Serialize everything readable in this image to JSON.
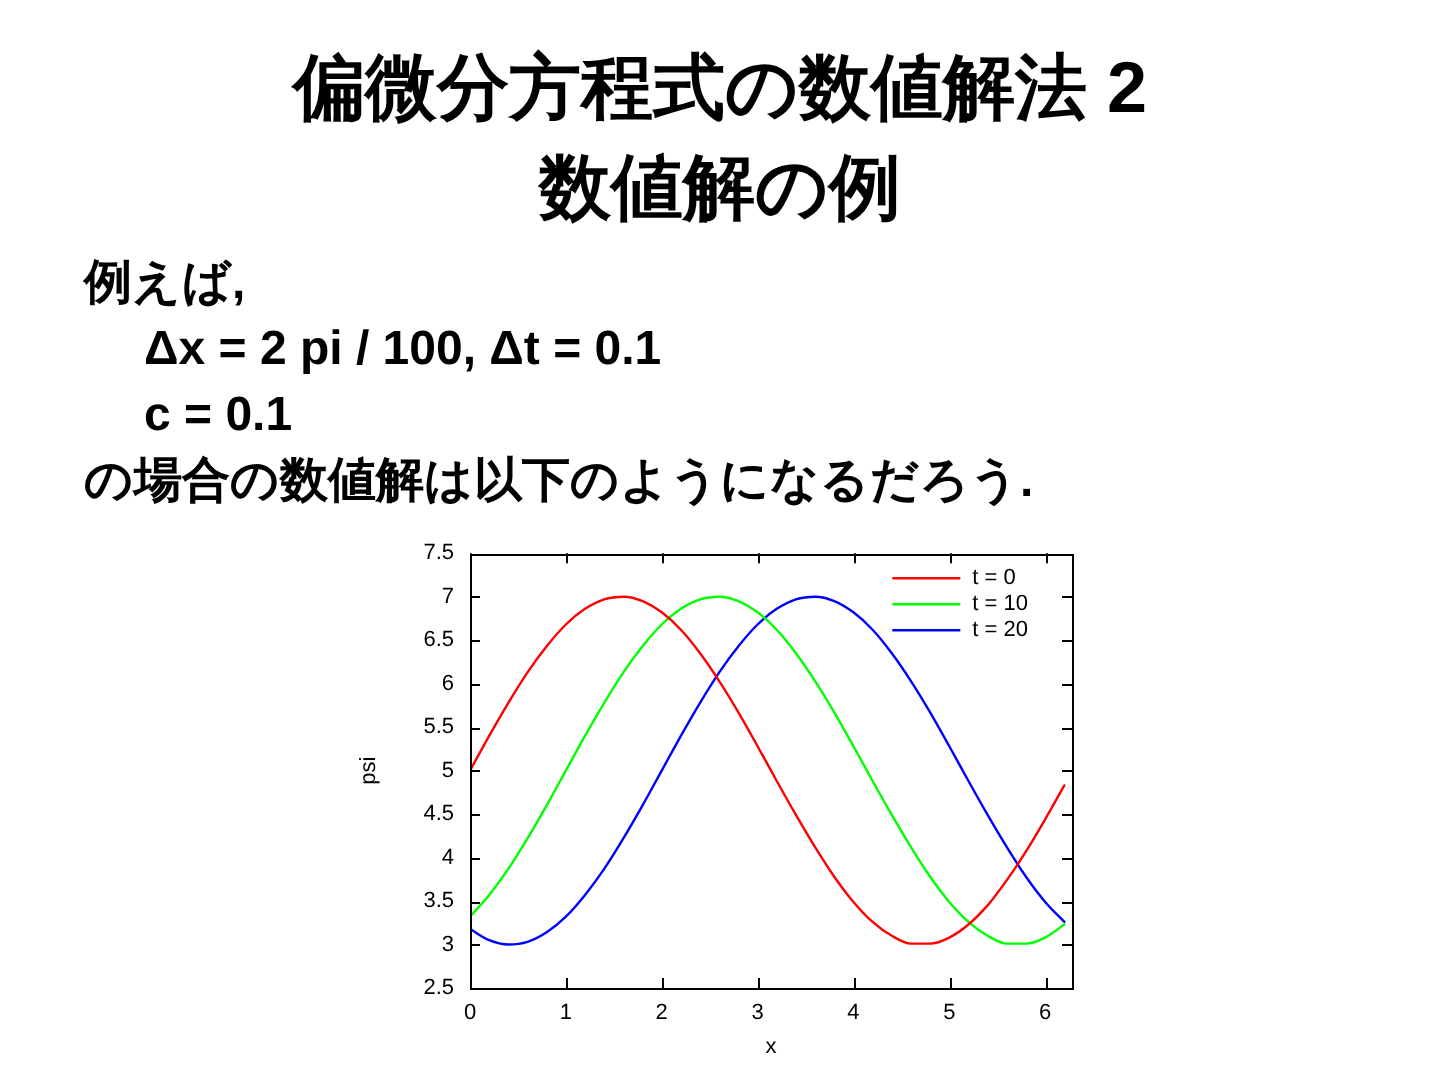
{
  "chart_data": {
    "type": "line",
    "title": "偏微分方程式の数値解法 2",
    "subtitle": "数値解の例",
    "annotations": [
      "例えば,",
      "Δx = 2 pi / 100, Δt = 0.1",
      "c = 0.1",
      "の場合の数値解は以下のようになるだろう."
    ],
    "xlabel": "x",
    "ylabel": "psi",
    "x": [
      0,
      0.2,
      0.4,
      0.6,
      0.8,
      1.0,
      1.2,
      1.4,
      1.6,
      1.8,
      2.0,
      2.2,
      2.4,
      2.6,
      2.8,
      3.0,
      3.2,
      3.4,
      3.6,
      3.8,
      4.0,
      4.2,
      4.4,
      4.6,
      4.8,
      5.0,
      5.2,
      5.4,
      5.6,
      5.8,
      6.0,
      6.2
    ],
    "series": [
      {
        "name": "t = 0",
        "color": "#ff0000",
        "values": [
          5.0,
          5.4,
          5.78,
          6.13,
          6.43,
          6.68,
          6.86,
          6.97,
          7.0,
          6.95,
          6.82,
          6.62,
          6.35,
          6.03,
          5.67,
          5.28,
          4.88,
          4.49,
          4.12,
          3.78,
          3.49,
          3.26,
          3.1,
          3.01,
          3.01,
          3.08,
          3.23,
          3.45,
          3.74,
          4.07,
          4.44,
          4.83
        ]
      },
      {
        "name": "t = 10",
        "color": "#00ff00",
        "values": [
          3.32,
          3.57,
          3.87,
          4.22,
          4.6,
          5.0,
          5.4,
          5.78,
          6.13,
          6.43,
          6.68,
          6.86,
          6.97,
          7.0,
          6.95,
          6.82,
          6.62,
          6.35,
          6.03,
          5.67,
          5.28,
          4.88,
          4.49,
          4.12,
          3.78,
          3.49,
          3.26,
          3.1,
          3.01,
          3.01,
          3.08,
          3.23
        ]
      },
      {
        "name": "t = 20",
        "color": "#0000ff",
        "values": [
          3.18,
          3.05,
          3.0,
          3.03,
          3.14,
          3.32,
          3.57,
          3.87,
          4.22,
          4.6,
          5.0,
          5.4,
          5.78,
          6.13,
          6.43,
          6.68,
          6.86,
          6.97,
          7.0,
          6.95,
          6.82,
          6.62,
          6.35,
          6.03,
          5.67,
          5.28,
          4.88,
          4.49,
          4.12,
          3.78,
          3.49,
          3.26
        ]
      }
    ],
    "xlim": [
      0,
      6.28
    ],
    "xticks": [
      0,
      1,
      2,
      3,
      4,
      5,
      6
    ],
    "ylim": [
      2.5,
      7.5
    ],
    "yticks": [
      2.5,
      3,
      3.5,
      4,
      4.5,
      5,
      5.5,
      6,
      6.5,
      7,
      7.5
    ],
    "grid": false,
    "legend": "top right",
    "marker": "none"
  }
}
